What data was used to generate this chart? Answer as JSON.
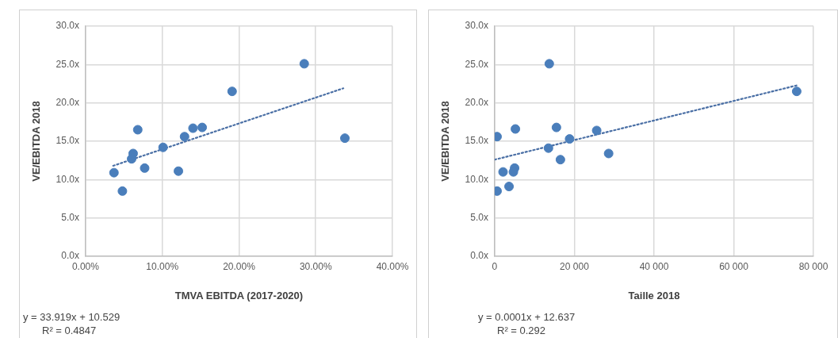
{
  "chart_data": [
    {
      "type": "scatter",
      "xlabel": "TMVA EBITDA (2017-2020)",
      "ylabel": "VE/EBITDA 2018",
      "marker": "circle",
      "grid": true,
      "legend": false,
      "xlim": [
        0,
        40
      ],
      "xticks": [
        {
          "value": 0,
          "label": "0.00%"
        },
        {
          "value": 10,
          "label": "10.00%"
        },
        {
          "value": 20,
          "label": "20.00%"
        },
        {
          "value": 30,
          "label": "30.00%"
        },
        {
          "value": 40,
          "label": "40.00%"
        }
      ],
      "ylim": [
        0,
        30
      ],
      "yticks": [
        {
          "value": 0,
          "label": "0.0x"
        },
        {
          "value": 5,
          "label": "5.0x"
        },
        {
          "value": 10,
          "label": "10.0x"
        },
        {
          "value": 15,
          "label": "15.0x"
        },
        {
          "value": 20,
          "label": "20.0x"
        },
        {
          "value": 25,
          "label": "25.0x"
        },
        {
          "value": 30,
          "label": "30.0x"
        }
      ],
      "series": [
        {
          "type": "scatter",
          "color": "#4a7ebb",
          "x": [
            28.5,
            19.1,
            6.8,
            14.0,
            15.2,
            12.9,
            33.8,
            10.1,
            6.2,
            6.0,
            7.7,
            12.1,
            3.7,
            4.8
          ],
          "values": [
            25.1,
            21.5,
            16.5,
            16.7,
            16.8,
            15.6,
            15.4,
            14.2,
            13.4,
            12.7,
            11.5,
            11.1,
            10.9,
            8.5
          ]
        },
        {
          "type": "line",
          "color": "#4a6fa5",
          "line_style": "dotted",
          "marker": "none",
          "x": [
            3.6,
            33.6
          ],
          "values": [
            11.8,
            21.9
          ]
        }
      ],
      "annotations": [
        "y = 33.919x + 10.529",
        "R² = 0.4847"
      ]
    },
    {
      "type": "scatter",
      "xlabel": "Taille 2018",
      "ylabel": "VE/EBITDA 2018",
      "marker": "circle",
      "grid": true,
      "legend": false,
      "xlim": [
        0,
        80000
      ],
      "xticks": [
        {
          "value": 0,
          "label": "0"
        },
        {
          "value": 20000,
          "label": "20 000"
        },
        {
          "value": 40000,
          "label": "40 000"
        },
        {
          "value": 60000,
          "label": "60 000"
        },
        {
          "value": 80000,
          "label": "80 000"
        }
      ],
      "ylim": [
        0,
        30
      ],
      "yticks": [
        {
          "value": 0,
          "label": "0.0x"
        },
        {
          "value": 5,
          "label": "5.0x"
        },
        {
          "value": 10,
          "label": "10.0x"
        },
        {
          "value": 15,
          "label": "15.0x"
        },
        {
          "value": 20,
          "label": "20.0x"
        },
        {
          "value": 25,
          "label": "25.0x"
        },
        {
          "value": 30,
          "label": "30.0x"
        }
      ],
      "series": [
        {
          "type": "scatter",
          "color": "#4a7ebb",
          "x": [
            13700,
            75800,
            5200,
            15500,
            25600,
            600,
            18800,
            13500,
            28600,
            16500,
            5000,
            4700,
            2100,
            3600,
            600
          ],
          "values": [
            25.1,
            21.5,
            16.6,
            16.8,
            16.4,
            15.6,
            15.3,
            14.1,
            13.4,
            12.6,
            11.5,
            11.0,
            11.0,
            9.1,
            8.5
          ]
        },
        {
          "type": "line",
          "color": "#4a6fa5",
          "line_style": "dotted",
          "marker": "none",
          "x": [
            0,
            76000
          ],
          "values": [
            12.6,
            22.3
          ]
        }
      ],
      "annotations": [
        "y = 0.0001x + 12.637",
        "R² = 0.292"
      ]
    }
  ]
}
